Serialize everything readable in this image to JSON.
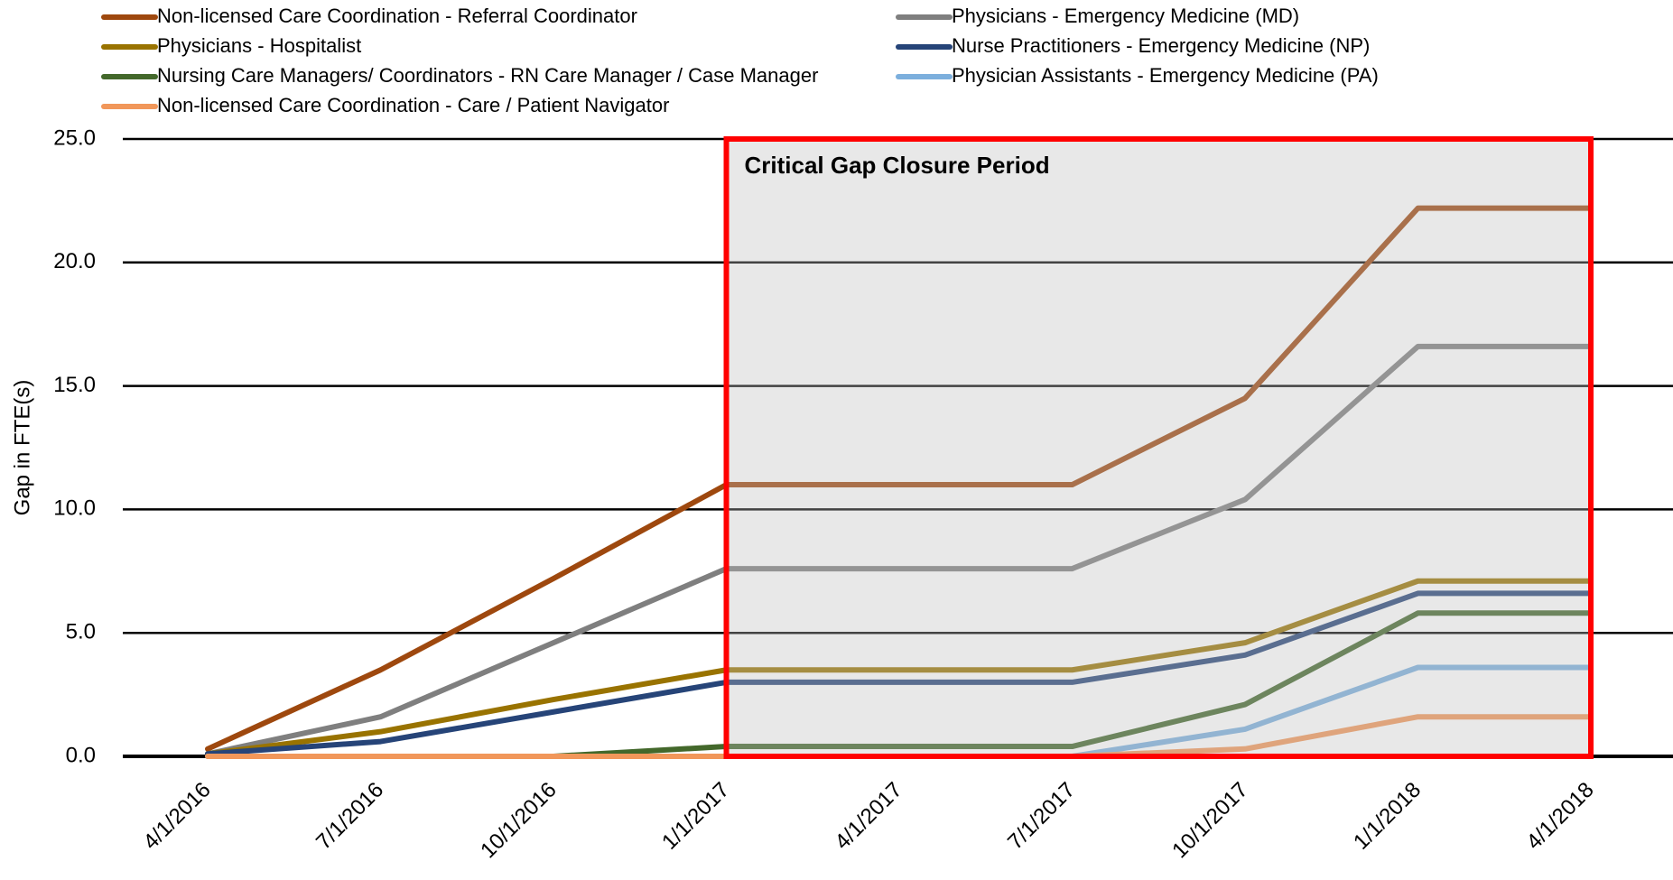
{
  "chart_data": {
    "type": "line",
    "y_label": "Gap in FTE(s)",
    "categories": [
      "4/1/2016",
      "7/1/2016",
      "10/1/2016",
      "1/1/2017",
      "4/1/2017",
      "7/1/2017",
      "10/1/2017",
      "1/1/2018",
      "4/1/2018"
    ],
    "series": [
      {
        "name": "Non-licensed Care Coordination -  Referral Coordinator",
        "color": "#9e480e",
        "values": [
          0.3,
          3.5,
          7.2,
          11.0,
          11.0,
          11.0,
          14.5,
          22.2,
          22.2
        ]
      },
      {
        "name": "Physicians -  Emergency Medicine (MD)",
        "color": "#7f7f7f",
        "values": [
          0.1,
          1.6,
          4.6,
          7.6,
          7.6,
          7.6,
          10.4,
          16.6,
          16.6
        ]
      },
      {
        "name": "Physicians -  Hospitalist",
        "color": "#997300",
        "values": [
          0.1,
          1.0,
          2.3,
          3.5,
          3.5,
          3.5,
          4.6,
          7.1,
          7.1
        ]
      },
      {
        "name": "Nurse Practitioners -  Emergency Medicine (NP)",
        "color": "#264478",
        "values": [
          0.1,
          0.6,
          1.8,
          3.0,
          3.0,
          3.0,
          4.1,
          6.6,
          6.6
        ]
      },
      {
        "name": "Nursing Care Managers/ Coordinators -  RN Care Manager / Case Manager",
        "color": "#43682b",
        "values": [
          0,
          0,
          0,
          0.4,
          0.4,
          0.4,
          2.1,
          5.8,
          5.8
        ]
      },
      {
        "name": "Physician Assistants -  Emergency Medicine (PA)",
        "color": "#7cafdd",
        "values": [
          0,
          0,
          0,
          0,
          0,
          0,
          1.1,
          3.6,
          3.6
        ]
      },
      {
        "name": "Non-licensed Care Coordination -  Care / Patient Navigator",
        "color": "#f1975a",
        "values": [
          0,
          0,
          0,
          0,
          0,
          0,
          0.3,
          1.6,
          1.6
        ]
      }
    ],
    "ylim": [
      0,
      25
    ],
    "yticks": [
      {
        "value": 0,
        "label": "0.0"
      },
      {
        "value": 5,
        "label": "5.0"
      },
      {
        "value": 10,
        "label": "10.0"
      },
      {
        "value": 15,
        "label": "15.0"
      },
      {
        "value": 20,
        "label": "20.0"
      },
      {
        "value": 25,
        "label": "25.0"
      }
    ],
    "grid": true,
    "highlight": {
      "label": "Critical Gap Closure Period",
      "start": "1/1/2017",
      "end": "4/1/2018"
    }
  }
}
